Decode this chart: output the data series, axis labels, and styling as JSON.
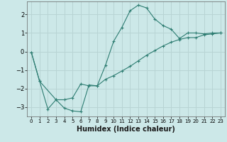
{
  "xlabel": "Humidex (Indice chaleur)",
  "ylabel": "",
  "background_color": "#cce8e8",
  "grid_color": "#b8d4d4",
  "line_color": "#2e7d72",
  "xlim": [
    -0.5,
    23.5
  ],
  "ylim": [
    -3.5,
    2.7
  ],
  "xticks": [
    0,
    1,
    2,
    3,
    4,
    5,
    6,
    7,
    8,
    9,
    10,
    11,
    12,
    13,
    14,
    15,
    16,
    17,
    18,
    19,
    20,
    21,
    22,
    23
  ],
  "yticks": [
    -3,
    -2,
    -1,
    0,
    1,
    2
  ],
  "line1_x": [
    0,
    1,
    2,
    3,
    4,
    5,
    6,
    7,
    8,
    9,
    10,
    11,
    12,
    13,
    14,
    15,
    16,
    17,
    18,
    19,
    20,
    21,
    22,
    23
  ],
  "line1_y": [
    -0.05,
    -1.6,
    -3.1,
    -2.6,
    -3.05,
    -3.2,
    -3.25,
    -1.8,
    -1.85,
    -0.75,
    0.55,
    1.3,
    2.2,
    2.5,
    2.35,
    1.75,
    1.4,
    1.2,
    0.7,
    1.0,
    1.0,
    0.95,
    1.0,
    1.0
  ],
  "line2_x": [
    0,
    1,
    3,
    4,
    5,
    6,
    7,
    8,
    9,
    10,
    11,
    12,
    13,
    14,
    15,
    16,
    17,
    18,
    19,
    20,
    21,
    22,
    23
  ],
  "line2_y": [
    -0.05,
    -1.6,
    -2.6,
    -2.6,
    -2.5,
    -1.75,
    -1.85,
    -1.85,
    -1.5,
    -1.3,
    -1.05,
    -0.8,
    -0.5,
    -0.2,
    0.05,
    0.3,
    0.5,
    0.65,
    0.75,
    0.75,
    0.9,
    0.95,
    1.0
  ],
  "xlabel_fontsize": 7,
  "tick_labelsize": 6,
  "xtick_labelsize": 5
}
